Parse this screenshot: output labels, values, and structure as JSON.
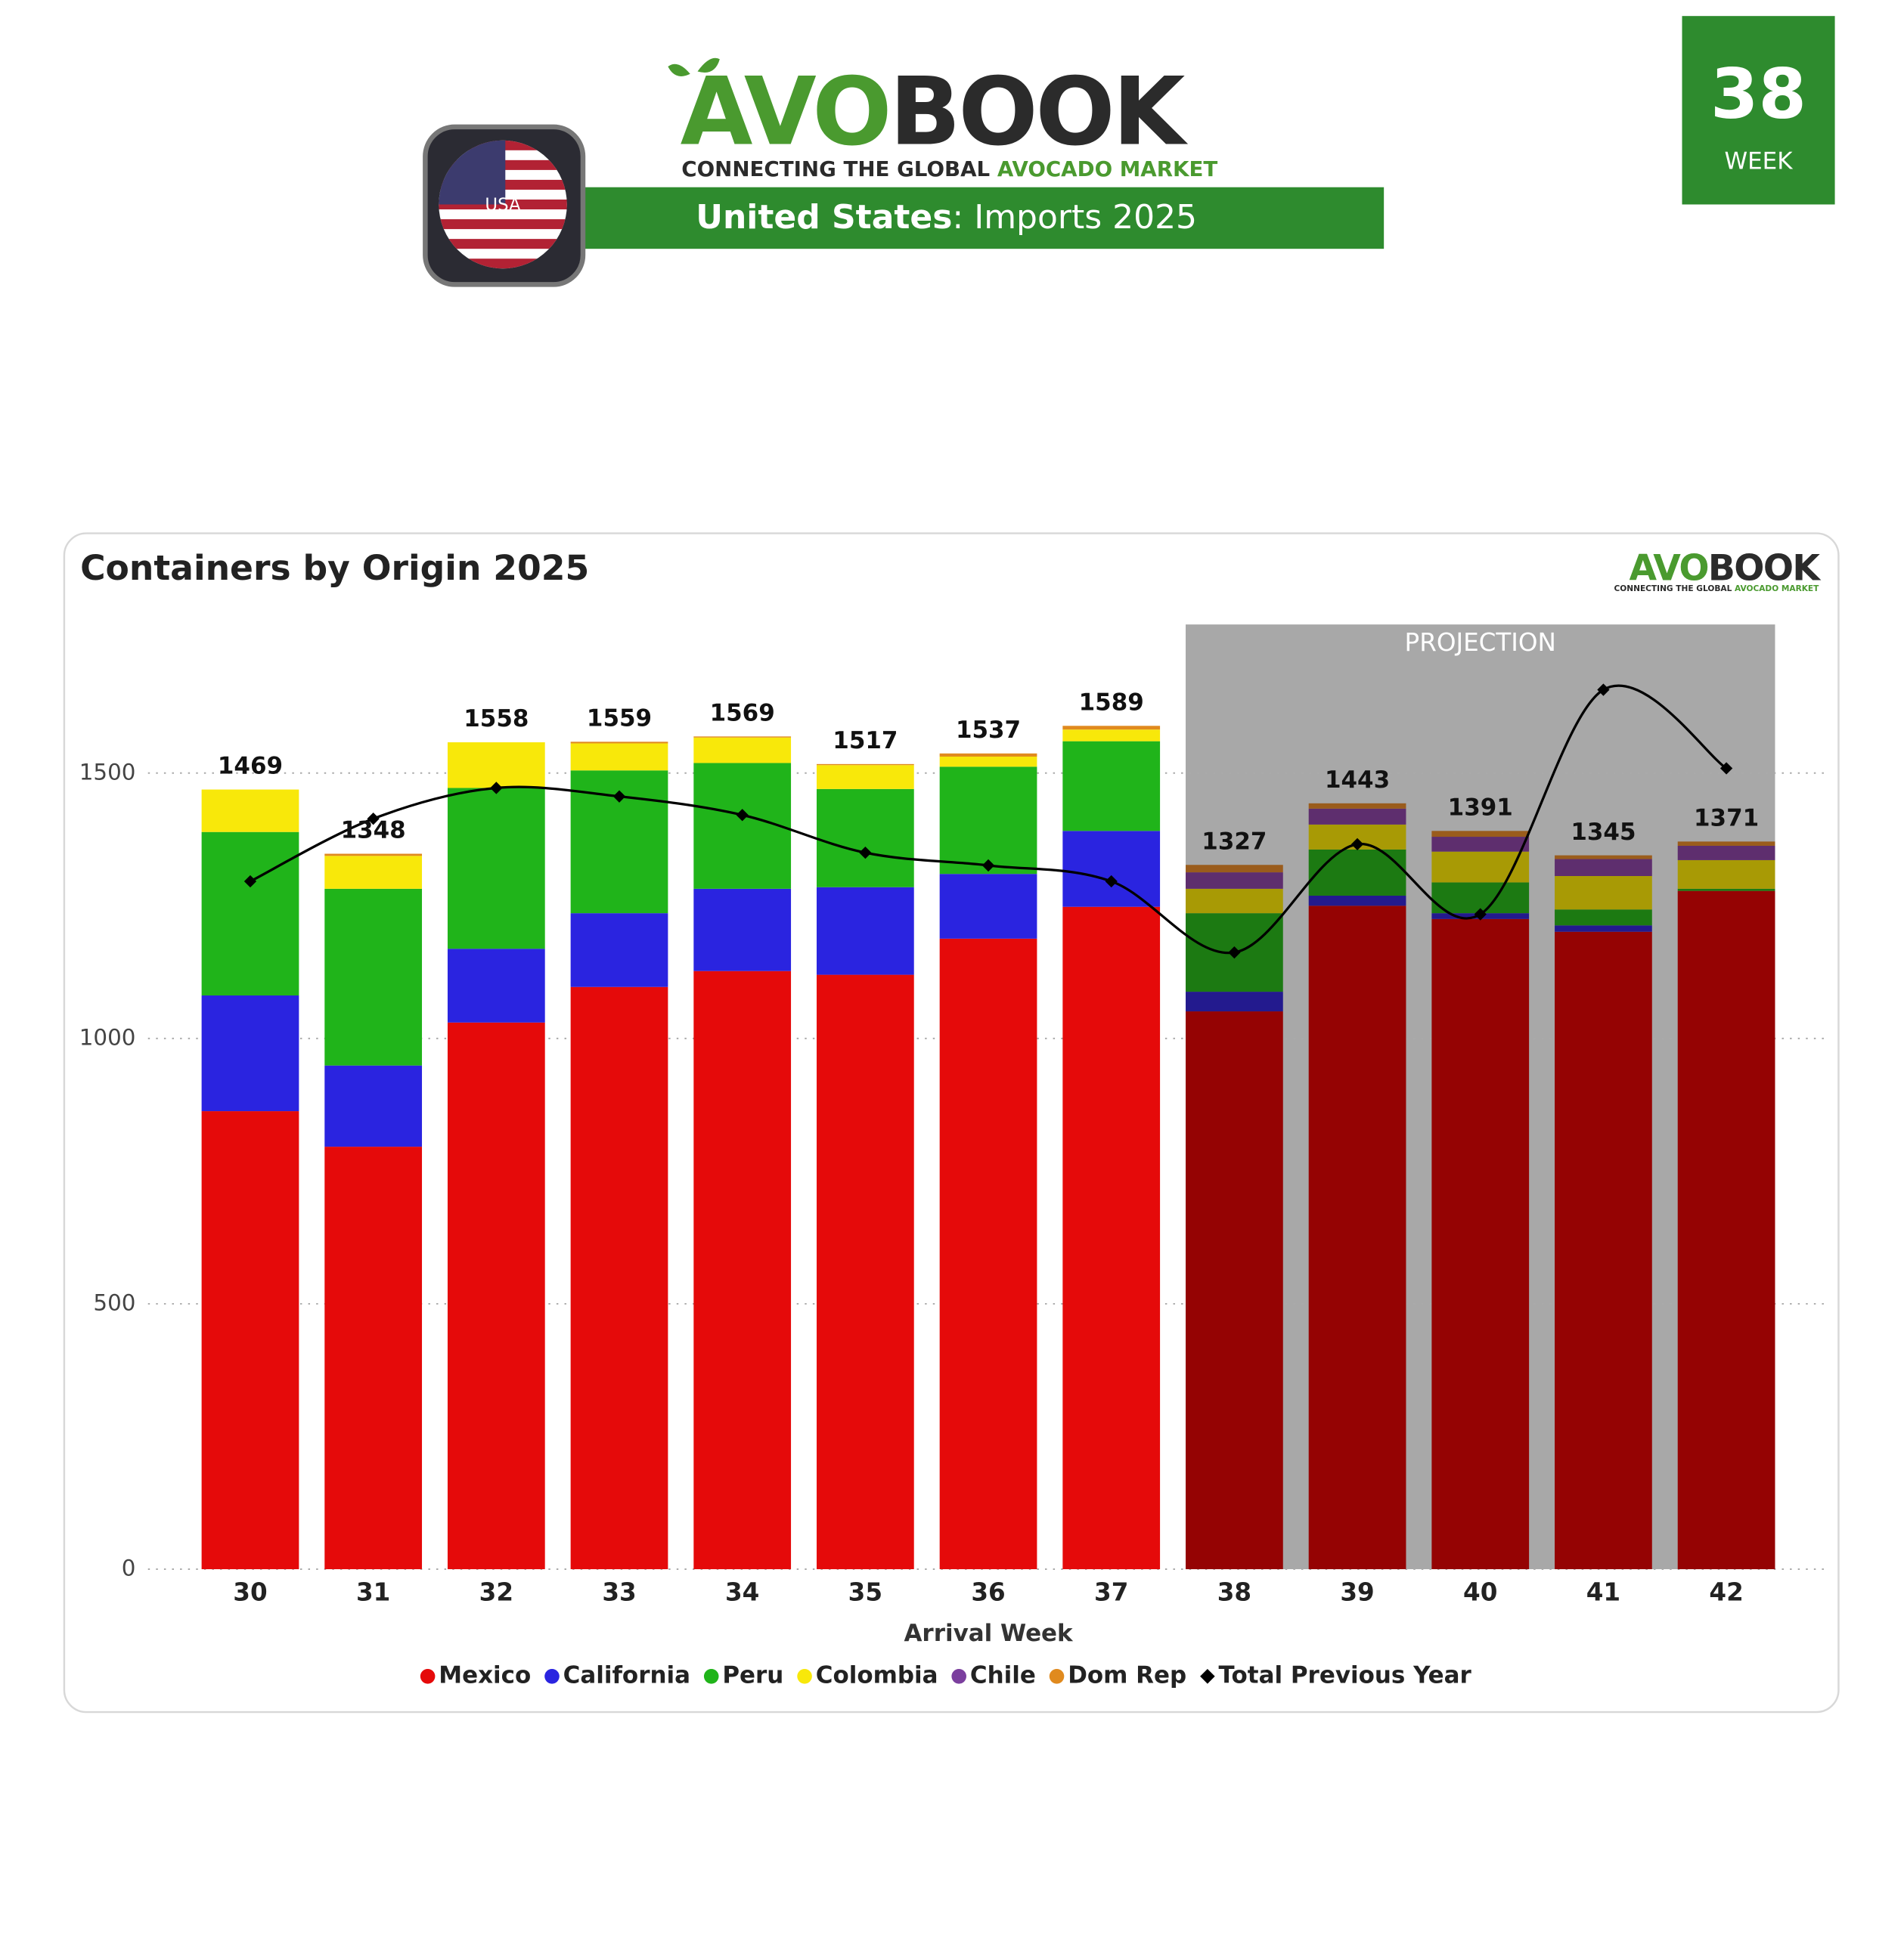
{
  "header": {
    "logo_green": "AVO",
    "logo_dark": "BOOK",
    "tagline_dark": "CONNECTING THE GLOBAL",
    "tagline_green": "AVOCADO MARKET",
    "subtitle_bold": "United States",
    "subtitle_rest": ": Imports 2025",
    "flag_label": "USA",
    "week_number": "38",
    "week_label": "WEEK"
  },
  "chart_data": {
    "type": "stacked_bar",
    "title": "Containers by Origin 2025",
    "x_label": "Arrival Week",
    "categories": [
      "30",
      "31",
      "32",
      "33",
      "34",
      "35",
      "36",
      "37",
      "38",
      "39",
      "40",
      "41",
      "42"
    ],
    "series": [
      {
        "name": "Mexico",
        "color": "#e50a0a",
        "projection_color": "#950303",
        "values": [
          863,
          796,
          1030,
          1097,
          1127,
          1120,
          1188,
          1248,
          1051,
          1250,
          1225,
          1201,
          1278
        ]
      },
      {
        "name": "California",
        "color": "#2a24e0",
        "projection_color": "#231a8e",
        "values": [
          218,
          153,
          139,
          139,
          155,
          165,
          122,
          143,
          37,
          19,
          11,
          12,
          0
        ]
      },
      {
        "name": "Peru",
        "color": "#20b41a",
        "projection_color": "#1c7a12",
        "values": [
          308,
          333,
          303,
          269,
          237,
          185,
          202,
          169,
          148,
          87,
          58,
          30,
          4
        ]
      },
      {
        "name": "Colombia",
        "color": "#f8e80a",
        "projection_color": "#a89a05",
        "values": [
          80,
          62,
          86,
          51,
          48,
          45,
          19,
          22,
          46,
          47,
          58,
          63,
          54
        ]
      },
      {
        "name": "Chile",
        "color": "#7b3f9e",
        "projection_color": "#5e2e6e",
        "values": [
          0,
          0,
          0,
          0,
          0,
          0,
          0,
          0,
          31,
          30,
          28,
          32,
          27
        ]
      },
      {
        "name": "Dom Rep",
        "color": "#e08a1e",
        "projection_color": "#9a5c1c",
        "values": [
          0,
          4,
          0,
          3,
          2,
          2,
          6,
          7,
          14,
          10,
          11,
          7,
          8
        ]
      }
    ],
    "totals": [
      1469,
      1348,
      1558,
      1559,
      1569,
      1517,
      1537,
      1589,
      1327,
      1443,
      1391,
      1345,
      1371
    ],
    "line": {
      "name": "Total Previous Year",
      "color": "#000000",
      "values": [
        1296,
        1414,
        1472,
        1456,
        1421,
        1350,
        1326,
        1296,
        1162,
        1366,
        1234,
        1657,
        1509
      ]
    },
    "projection": {
      "label": "PROJECTION",
      "from": "38"
    },
    "ylim": [
      0,
      1780
    ],
    "yticks": [
      0,
      500,
      1000,
      1500
    ],
    "grid": true,
    "legend": "bottom"
  }
}
